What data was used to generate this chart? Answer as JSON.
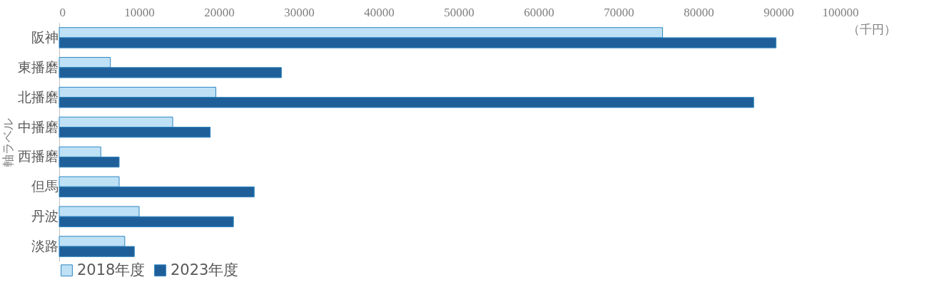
{
  "chart_data": {
    "type": "bar",
    "orientation": "horizontal",
    "ylabel": "軸ラベル",
    "annotations": [
      "（千円）"
    ],
    "categories": [
      "阪神",
      "東播磨",
      "北播磨",
      "中播磨",
      "西播磨",
      "但馬",
      "丹波",
      "淡路"
    ],
    "series": [
      {
        "name": "2018年度",
        "color": "#bfe1f5",
        "values": [
          75500,
          6400,
          19600,
          14200,
          5200,
          7500,
          10000,
          8200
        ]
      },
      {
        "name": "2023年度",
        "color": "#1f5f99",
        "values": [
          89700,
          27800,
          86900,
          18900,
          7500,
          24400,
          21800,
          9400
        ]
      }
    ],
    "xlim": [
      0,
      100000
    ],
    "xticks": [
      0,
      10000,
      20000,
      30000,
      40000,
      50000,
      60000,
      70000,
      80000,
      90000,
      100000
    ],
    "grid": false,
    "legend": "bottom"
  }
}
